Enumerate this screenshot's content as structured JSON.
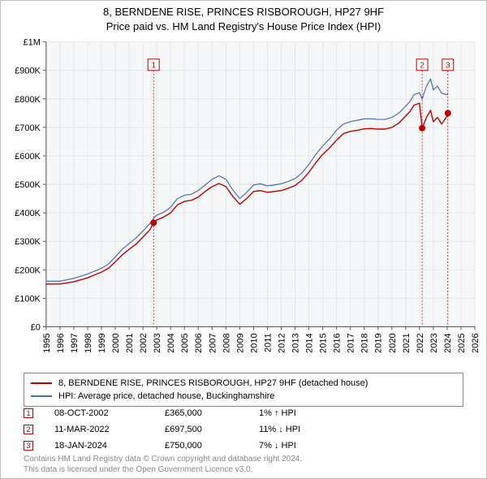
{
  "title": "8, BERNDENE RISE, PRINCES RISBOROUGH, HP27 9HF",
  "subtitle": "Price paid vs. HM Land Registry's House Price Index (HPI)",
  "chart": {
    "type": "line",
    "background_color": "#ffffff",
    "plot_background_color": "#f6f7f8",
    "grid_color": "#e4e6e8",
    "axis_color": "#555555",
    "tick_color": "#555555",
    "label_color": "#000000",
    "label_fontsize": 11,
    "x": {
      "min": 1995,
      "max": 2026,
      "ticks": [
        1995,
        1996,
        1997,
        1998,
        1999,
        2000,
        2001,
        2002,
        2003,
        2004,
        2005,
        2006,
        2007,
        2008,
        2009,
        2010,
        2011,
        2012,
        2013,
        2014,
        2015,
        2016,
        2017,
        2018,
        2019,
        2020,
        2021,
        2022,
        2023,
        2024,
        2025,
        2026
      ]
    },
    "y": {
      "min": 0,
      "max": 1000000,
      "ticks": [
        0,
        100000,
        200000,
        300000,
        400000,
        500000,
        600000,
        700000,
        800000,
        900000,
        1000000
      ],
      "tick_labels": [
        "£0",
        "£100K",
        "£200K",
        "£300K",
        "£400K",
        "£500K",
        "£600K",
        "£700K",
        "£800K",
        "£900K",
        "£1M"
      ]
    },
    "series": {
      "hpi": {
        "label": "HPI: Average price, detached house, Buckinghamshire",
        "color": "#4a6fb3",
        "line_width": 1.2,
        "points": [
          [
            1995,
            160000
          ],
          [
            1996,
            160000
          ],
          [
            1997,
            170000
          ],
          [
            1998,
            185000
          ],
          [
            1998.5,
            195000
          ],
          [
            1999,
            205000
          ],
          [
            1999.5,
            220000
          ],
          [
            2000,
            245000
          ],
          [
            2000.5,
            272000
          ],
          [
            2001,
            292000
          ],
          [
            2001.5,
            312000
          ],
          [
            2002,
            336000
          ],
          [
            2002.5,
            362000
          ],
          [
            2002.77,
            380000
          ],
          [
            2003,
            392000
          ],
          [
            2003.5,
            402000
          ],
          [
            2004,
            420000
          ],
          [
            2004.5,
            450000
          ],
          [
            2005,
            462000
          ],
          [
            2005.5,
            465000
          ],
          [
            2006,
            478000
          ],
          [
            2006.5,
            498000
          ],
          [
            2007,
            518000
          ],
          [
            2007.5,
            530000
          ],
          [
            2008,
            518000
          ],
          [
            2008.5,
            480000
          ],
          [
            2009,
            450000
          ],
          [
            2009.5,
            472000
          ],
          [
            2010,
            498000
          ],
          [
            2010.5,
            502000
          ],
          [
            2011,
            495000
          ],
          [
            2011.5,
            498000
          ],
          [
            2012,
            502000
          ],
          [
            2012.5,
            510000
          ],
          [
            2013,
            520000
          ],
          [
            2013.5,
            540000
          ],
          [
            2014,
            570000
          ],
          [
            2014.5,
            605000
          ],
          [
            2015,
            635000
          ],
          [
            2015.5,
            660000
          ],
          [
            2016,
            690000
          ],
          [
            2016.5,
            712000
          ],
          [
            2017,
            720000
          ],
          [
            2017.5,
            725000
          ],
          [
            2018,
            730000
          ],
          [
            2018.5,
            730000
          ],
          [
            2019,
            728000
          ],
          [
            2019.5,
            728000
          ],
          [
            2020,
            735000
          ],
          [
            2020.5,
            750000
          ],
          [
            2021,
            775000
          ],
          [
            2021.3,
            790000
          ],
          [
            2021.6,
            815000
          ],
          [
            2022,
            822000
          ],
          [
            2022.19,
            800000
          ],
          [
            2022.5,
            845000
          ],
          [
            2022.8,
            870000
          ],
          [
            2023,
            832000
          ],
          [
            2023.3,
            845000
          ],
          [
            2023.6,
            820000
          ],
          [
            2024,
            815000
          ],
          [
            2024.05,
            820000
          ]
        ]
      },
      "price_paid": {
        "label": "8, BERNDENE RISE, PRINCES RISBOROUGH, HP27 9HF (detached house)",
        "color": "#c00000",
        "line_width": 1.4,
        "points": [
          [
            1995,
            150000
          ],
          [
            1996,
            150000
          ],
          [
            1997,
            158000
          ],
          [
            1998,
            172000
          ],
          [
            1998.5,
            182000
          ],
          [
            1999,
            192000
          ],
          [
            1999.5,
            205000
          ],
          [
            2000,
            228000
          ],
          [
            2000.5,
            252000
          ],
          [
            2001,
            272000
          ],
          [
            2001.5,
            290000
          ],
          [
            2002,
            315000
          ],
          [
            2002.5,
            340000
          ],
          [
            2002.77,
            365000
          ],
          [
            2003,
            375000
          ],
          [
            2003.5,
            385000
          ],
          [
            2004,
            400000
          ],
          [
            2004.5,
            428000
          ],
          [
            2005,
            440000
          ],
          [
            2005.5,
            444000
          ],
          [
            2006,
            455000
          ],
          [
            2006.5,
            475000
          ],
          [
            2007,
            492000
          ],
          [
            2007.5,
            503000
          ],
          [
            2008,
            492000
          ],
          [
            2008.5,
            458000
          ],
          [
            2009,
            430000
          ],
          [
            2009.5,
            450000
          ],
          [
            2010,
            475000
          ],
          [
            2010.5,
            478000
          ],
          [
            2011,
            472000
          ],
          [
            2011.5,
            475000
          ],
          [
            2012,
            478000
          ],
          [
            2012.5,
            486000
          ],
          [
            2013,
            496000
          ],
          [
            2013.5,
            515000
          ],
          [
            2014,
            542000
          ],
          [
            2014.5,
            576000
          ],
          [
            2015,
            605000
          ],
          [
            2015.5,
            628000
          ],
          [
            2016,
            655000
          ],
          [
            2016.5,
            678000
          ],
          [
            2017,
            686000
          ],
          [
            2017.5,
            690000
          ],
          [
            2018,
            695000
          ],
          [
            2018.5,
            696000
          ],
          [
            2019,
            694000
          ],
          [
            2019.5,
            694000
          ],
          [
            2020,
            700000
          ],
          [
            2020.5,
            715000
          ],
          [
            2021,
            740000
          ],
          [
            2021.3,
            755000
          ],
          [
            2021.6,
            778000
          ],
          [
            2022,
            785000
          ],
          [
            2022.19,
            697500
          ],
          [
            2022.5,
            735000
          ],
          [
            2022.8,
            760000
          ],
          [
            2023,
            720000
          ],
          [
            2023.3,
            735000
          ],
          [
            2023.6,
            712000
          ],
          [
            2024,
            740000
          ],
          [
            2024.05,
            750000
          ]
        ]
      }
    },
    "sale_markers": [
      {
        "n": "1",
        "x": 2002.77,
        "y": 365000
      },
      {
        "n": "2",
        "x": 2022.19,
        "y": 697500
      },
      {
        "n": "3",
        "x": 2024.05,
        "y": 750000
      }
    ],
    "marker_style": {
      "marker_outline": "#c00000",
      "marker_fill": "#c00000",
      "marker_radius": 3.5,
      "flag_line_color": "#c00000",
      "flag_box_border": "#c00000",
      "flag_box_fill": "#ffffff",
      "flag_text_color": "#c00000",
      "flag_top_y": 900000,
      "flag_box_size": 14
    }
  },
  "legend": {
    "border_color": "#888888",
    "rows": [
      {
        "color": "#c00000",
        "label": "8, BERNDENE RISE, PRINCES RISBOROUGH, HP27 9HF (detached house)"
      },
      {
        "color": "#4a6fb3",
        "label": "HPI: Average price, detached house, Buckinghamshire"
      }
    ]
  },
  "markers_table": {
    "box_border": "#c00000",
    "box_text_color": "#c00000",
    "rows": [
      {
        "n": "1",
        "date": "08-OCT-2002",
        "price": "£365,000",
        "diff": "1% ↑ HPI"
      },
      {
        "n": "2",
        "date": "11-MAR-2022",
        "price": "£697,500",
        "diff": "11% ↓ HPI"
      },
      {
        "n": "3",
        "date": "18-JAN-2024",
        "price": "£750,000",
        "diff": "7% ↓ HPI"
      }
    ]
  },
  "footer": {
    "line1": "Contains HM Land Registry data © Crown copyright and database right 2024.",
    "line2": "This data is licensed under the Open Government Licence v3.0.",
    "color": "#888888"
  }
}
